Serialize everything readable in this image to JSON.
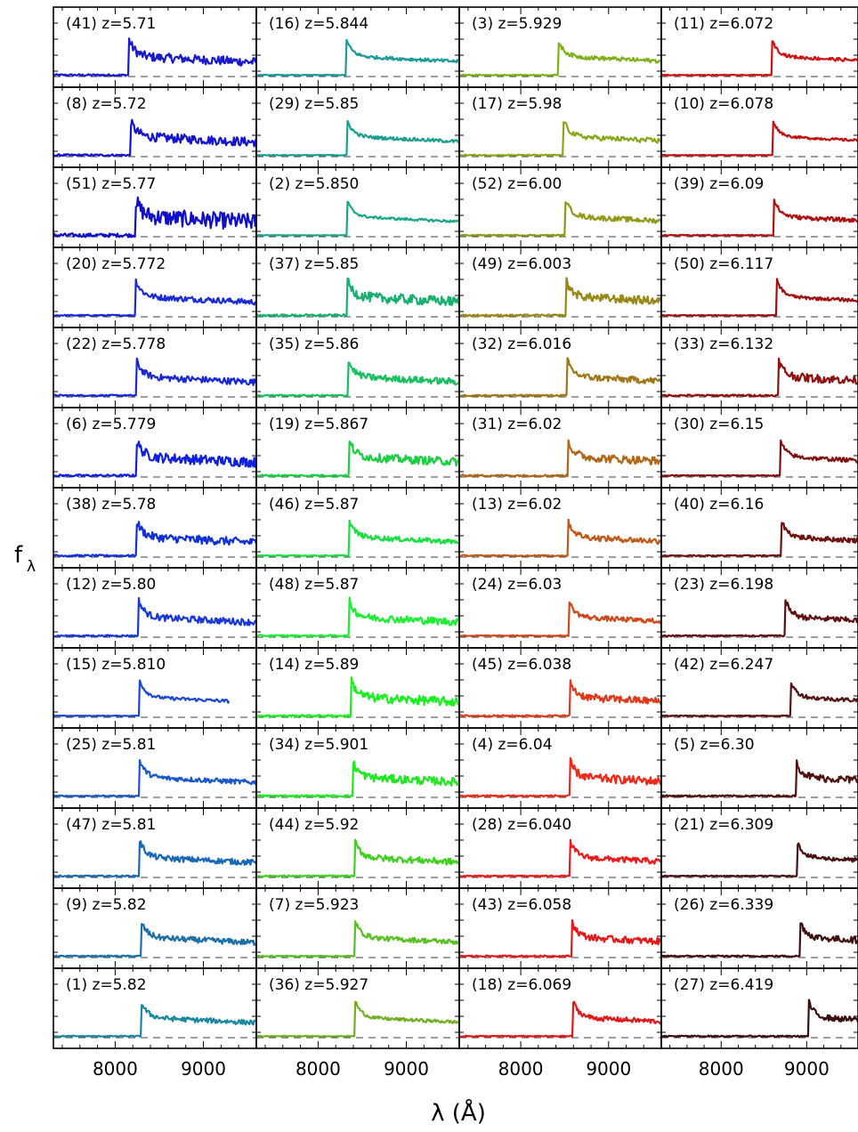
{
  "chart_data": {
    "type": "line",
    "xlabel": "λ (Å)",
    "ylabel": "f",
    "ylabel_sub": "λ",
    "xlim": [
      7300,
      9600
    ],
    "xticks": [
      "8000",
      "9000"
    ],
    "grid": false,
    "legend": "none",
    "panel_columns": [
      [
        {
          "id": "(41)",
          "z": "z=5.71",
          "color": "#1a1acc",
          "noise": 0.55,
          "scale": 1.0
        },
        {
          "id": "(8)",
          "z": "z=5.72",
          "color": "#1414d0",
          "noise": 0.55,
          "scale": 1.0
        },
        {
          "id": "(51)",
          "z": "z=5.77",
          "color": "#1010cc",
          "noise": 1.0,
          "scale": 1.0
        },
        {
          "id": "(20)",
          "z": "z=5.772",
          "color": "#1a2ad8",
          "noise": 0.35,
          "scale": 1.0
        },
        {
          "id": "(22)",
          "z": "z=5.778",
          "color": "#1828d8",
          "noise": 0.4,
          "scale": 1.0
        },
        {
          "id": "(6)",
          "z": "z=5.779",
          "color": "#1020e0",
          "noise": 0.6,
          "scale": 1.0
        },
        {
          "id": "(38)",
          "z": "z=5.78",
          "color": "#1030d8",
          "noise": 0.5,
          "scale": 1.0
        },
        {
          "id": "(12)",
          "z": "z=5.80",
          "color": "#1838d8",
          "noise": 0.4,
          "scale": 1.0
        },
        {
          "id": "(15)",
          "z": "z=5.810",
          "color": "#1a48d0",
          "noise": 0.2,
          "scale": 1.0,
          "xmax": 9300
        },
        {
          "id": "(25)",
          "z": "z=5.81",
          "color": "#1858c8",
          "noise": 0.3,
          "scale": 1.0
        },
        {
          "id": "(47)",
          "z": "z=5.81",
          "color": "#1868b8",
          "noise": 0.35,
          "scale": 1.0
        },
        {
          "id": "(9)",
          "z": "z=5.82",
          "color": "#1a70a8",
          "noise": 0.35,
          "scale": 1.0
        },
        {
          "id": "(1)",
          "z": "z=5.82",
          "color": "#1a88a0",
          "noise": 0.3,
          "scale": 1.0
        }
      ],
      [
        {
          "id": "(16)",
          "z": "z=5.844",
          "color": "#1a9a98",
          "noise": 0.2,
          "scale": 1.0
        },
        {
          "id": "(29)",
          "z": "z=5.85",
          "color": "#1aa090",
          "noise": 0.2,
          "scale": 1.0
        },
        {
          "id": "(2)",
          "z": "z=5.850",
          "color": "#1aa888",
          "noise": 0.15,
          "scale": 1.0
        },
        {
          "id": "(37)",
          "z": "z=5.85",
          "color": "#18b070",
          "noise": 0.6,
          "scale": 1.0
        },
        {
          "id": "(35)",
          "z": "z=5.86",
          "color": "#18c060",
          "noise": 0.4,
          "scale": 1.0
        },
        {
          "id": "(19)",
          "z": "z=5.867",
          "color": "#18d040",
          "noise": 0.5,
          "scale": 1.0
        },
        {
          "id": "(46)",
          "z": "z=5.87",
          "color": "#18e040",
          "noise": 0.3,
          "scale": 1.0
        },
        {
          "id": "(48)",
          "z": "z=5.87",
          "color": "#18f030",
          "noise": 0.45,
          "scale": 1.0
        },
        {
          "id": "(14)",
          "z": "z=5.89",
          "color": "#18f020",
          "noise": 0.55,
          "scale": 1.0
        },
        {
          "id": "(34)",
          "z": "z=5.901",
          "color": "#20e820",
          "noise": 0.5,
          "scale": 1.0
        },
        {
          "id": "(44)",
          "z": "z=5.92",
          "color": "#40d020",
          "noise": 0.4,
          "scale": 1.0
        },
        {
          "id": "(7)",
          "z": "z=5.923",
          "color": "#58c020",
          "noise": 0.3,
          "scale": 1.0
        },
        {
          "id": "(36)",
          "z": "z=5.927",
          "color": "#70b020",
          "noise": 0.2,
          "scale": 1.0
        }
      ],
      [
        {
          "id": "(3)",
          "z": "z=5.929",
          "color": "#80b018",
          "noise": 0.25,
          "scale": 1.0
        },
        {
          "id": "(17)",
          "z": "z=5.98",
          "color": "#88a818",
          "noise": 0.3,
          "scale": 1.0
        },
        {
          "id": "(52)",
          "z": "z=6.00",
          "color": "#909818",
          "noise": 0.3,
          "scale": 1.0
        },
        {
          "id": "(49)",
          "z": "z=6.003",
          "color": "#988818",
          "noise": 0.5,
          "scale": 1.0
        },
        {
          "id": "(32)",
          "z": "z=6.016",
          "color": "#a07818",
          "noise": 0.4,
          "scale": 1.0
        },
        {
          "id": "(31)",
          "z": "z=6.02",
          "color": "#b06818",
          "noise": 0.5,
          "scale": 1.0
        },
        {
          "id": "(13)",
          "z": "z=6.02",
          "color": "#c05818",
          "noise": 0.35,
          "scale": 1.0
        },
        {
          "id": "(24)",
          "z": "z=6.03",
          "color": "#d04818",
          "noise": 0.3,
          "scale": 1.0
        },
        {
          "id": "(45)",
          "z": "z=6.038",
          "color": "#e03818",
          "noise": 0.45,
          "scale": 1.0
        },
        {
          "id": "(4)",
          "z": "z=6.04",
          "color": "#f02818",
          "noise": 0.5,
          "scale": 1.0
        },
        {
          "id": "(28)",
          "z": "z=6.040",
          "color": "#f01818",
          "noise": 0.35,
          "scale": 1.0
        },
        {
          "id": "(43)",
          "z": "z=6.058",
          "color": "#e81818",
          "noise": 0.4,
          "scale": 1.0
        },
        {
          "id": "(18)",
          "z": "z=6.069",
          "color": "#e01818",
          "noise": 0.3,
          "scale": 1.0
        }
      ],
      [
        {
          "id": "(11)",
          "z": "z=6.072",
          "color": "#d01010",
          "noise": 0.2,
          "scale": 1.0
        },
        {
          "id": "(10)",
          "z": "z=6.078",
          "color": "#c01010",
          "noise": 0.15,
          "scale": 1.0
        },
        {
          "id": "(39)",
          "z": "z=6.09",
          "color": "#b01010",
          "noise": 0.25,
          "scale": 1.0
        },
        {
          "id": "(50)",
          "z": "z=6.117",
          "color": "#a01010",
          "noise": 0.2,
          "scale": 1.0
        },
        {
          "id": "(33)",
          "z": "z=6.132",
          "color": "#901010",
          "noise": 0.5,
          "scale": 1.0
        },
        {
          "id": "(30)",
          "z": "z=6.15",
          "color": "#801010",
          "noise": 0.25,
          "scale": 1.0
        },
        {
          "id": "(40)",
          "z": "z=6.16",
          "color": "#701010",
          "noise": 0.3,
          "scale": 1.0
        },
        {
          "id": "(23)",
          "z": "z=6.198",
          "color": "#601010",
          "noise": 0.35,
          "scale": 1.0
        },
        {
          "id": "(42)",
          "z": "z=6.247",
          "color": "#581010",
          "noise": 0.25,
          "scale": 1.0
        },
        {
          "id": "(5)",
          "z": "z=6.30",
          "color": "#501010",
          "noise": 0.45,
          "scale": 1.0
        },
        {
          "id": "(21)",
          "z": "z=6.309",
          "color": "#481010",
          "noise": 0.25,
          "scale": 1.0
        },
        {
          "id": "(26)",
          "z": "z=6.339",
          "color": "#401010",
          "noise": 0.4,
          "scale": 1.0
        },
        {
          "id": "(27)",
          "z": "z=6.419",
          "color": "#381010",
          "noise": 0.35,
          "scale": 1.0
        }
      ]
    ]
  }
}
